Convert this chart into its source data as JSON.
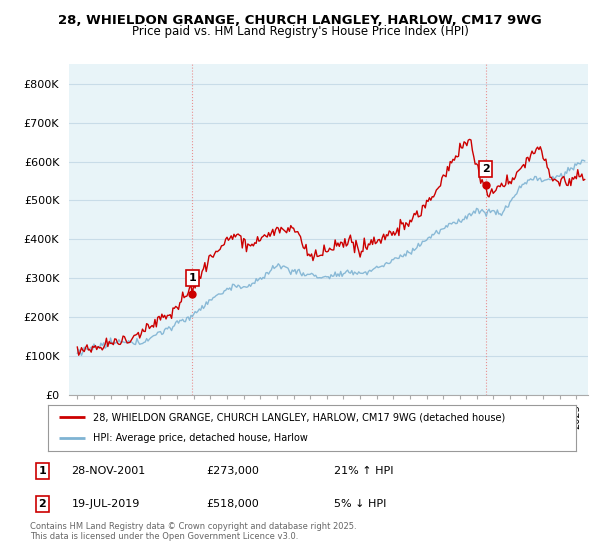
{
  "title_line1": "28, WHIELDON GRANGE, CHURCH LANGLEY, HARLOW, CM17 9WG",
  "title_line2": "Price paid vs. HM Land Registry's House Price Index (HPI)",
  "ylim": [
    0,
    850000
  ],
  "yticks": [
    0,
    100000,
    200000,
    300000,
    400000,
    500000,
    600000,
    700000,
    800000
  ],
  "ytick_labels": [
    "£0",
    "£100K",
    "£200K",
    "£300K",
    "£400K",
    "£500K",
    "£600K",
    "£700K",
    "£800K"
  ],
  "x_start_year": 1995,
  "x_end_year": 2025,
  "purchase1_year": 2001.91,
  "purchase1_price": 273000,
  "purchase2_year": 2019.54,
  "purchase2_price": 518000,
  "red_color": "#cc0000",
  "blue_color": "#7fb3d3",
  "chart_bg": "#e8f4f8",
  "vline_color": "#e89090",
  "background_color": "#ffffff",
  "grid_color": "#c8dce8",
  "legend_line1": "28, WHIELDON GRANGE, CHURCH LANGLEY, HARLOW, CM17 9WG (detached house)",
  "legend_line2": "HPI: Average price, detached house, Harlow",
  "footnote": "Contains HM Land Registry data © Crown copyright and database right 2025.\nThis data is licensed under the Open Government Licence v3.0.",
  "table_row1_num": "1",
  "table_row1_date": "28-NOV-2001",
  "table_row1_price": "£273,000",
  "table_row1_hpi": "21% ↑ HPI",
  "table_row2_num": "2",
  "table_row2_date": "19-JUL-2019",
  "table_row2_price": "£518,000",
  "table_row2_hpi": "5% ↓ HPI",
  "hpi_anchors_x": [
    1995.0,
    1997.0,
    1998.5,
    2000.0,
    2001.5,
    2002.5,
    2004.0,
    2005.5,
    2007.0,
    2008.5,
    2009.5,
    2011.0,
    2012.0,
    2013.5,
    2015.0,
    2016.5,
    2018.0,
    2019.0,
    2019.5,
    2020.5,
    2021.5,
    2022.5,
    2023.0,
    2024.0,
    2025.5
  ],
  "hpi_anchors_y": [
    105000,
    115000,
    128000,
    155000,
    195000,
    220000,
    265000,
    280000,
    330000,
    310000,
    295000,
    305000,
    310000,
    330000,
    370000,
    420000,
    460000,
    490000,
    490000,
    480000,
    540000,
    570000,
    560000,
    570000,
    610000
  ],
  "prop_anchors_x": [
    1995.0,
    1997.0,
    1999.0,
    2000.5,
    2001.91,
    2003.0,
    2004.0,
    2005.5,
    2007.0,
    2008.0,
    2009.0,
    2010.5,
    2012.0,
    2013.5,
    2015.0,
    2016.5,
    2017.5,
    2018.5,
    2019.54,
    2020.0,
    2021.0,
    2022.0,
    2022.8,
    2023.5,
    2024.5,
    2025.5
  ],
  "prop_anchors_y": [
    125000,
    140000,
    165000,
    210000,
    273000,
    340000,
    390000,
    380000,
    420000,
    415000,
    350000,
    360000,
    370000,
    390000,
    450000,
    520000,
    600000,
    660000,
    518000,
    510000,
    560000,
    620000,
    660000,
    580000,
    570000,
    590000
  ]
}
